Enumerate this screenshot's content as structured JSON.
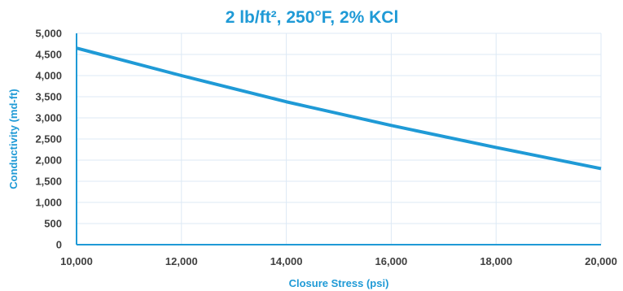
{
  "chart_data": {
    "type": "line",
    "title": "2 lb/ft², 250°F, 2% KCl",
    "xlabel": "Closure Stress (psi)",
    "ylabel": "Conductivity (md-ft)",
    "xlim": [
      10000,
      20000
    ],
    "ylim": [
      0,
      5000
    ],
    "x_ticks": [
      10000,
      12000,
      14000,
      16000,
      18000,
      20000
    ],
    "x_tick_labels": [
      "10,000",
      "12,000",
      "14,000",
      "16,000",
      "18,000",
      "20,000"
    ],
    "y_ticks": [
      0,
      500,
      1000,
      1500,
      2000,
      2500,
      3000,
      3500,
      4000,
      4500,
      5000
    ],
    "y_tick_labels": [
      "0",
      "500",
      "1,000",
      "1,500",
      "2,000",
      "2,500",
      "3,000",
      "3,500",
      "4,000",
      "4,500",
      "5,000"
    ],
    "grid": true,
    "series": [
      {
        "x": [
          10000,
          12000,
          14000,
          16000,
          18000,
          20000
        ],
        "values": [
          4650,
          4000,
          3380,
          2820,
          2300,
          1800
        ]
      }
    ],
    "colors": {
      "line": "#1f9ad6",
      "axis": "#1f9ad6",
      "grid": "#dde9f5",
      "title": "#1f9ad6",
      "ticks": "#404040"
    }
  }
}
